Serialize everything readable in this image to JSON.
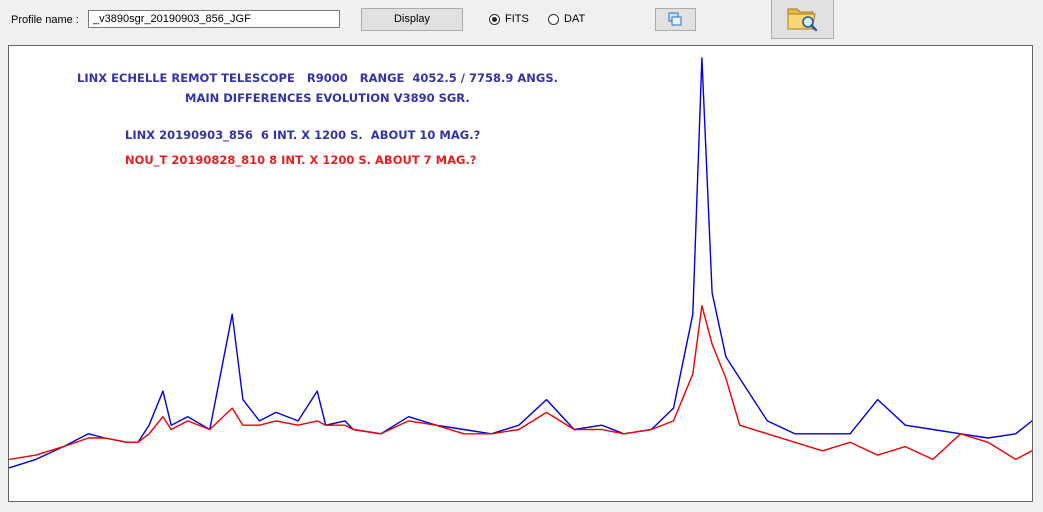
{
  "toolbar": {
    "profile_label": "Profile name :",
    "profile_value": "_v3890sgr_20190903_856_JGF",
    "display_label": "Display",
    "format_options": [
      {
        "label": "FITS",
        "selected": true
      },
      {
        "label": "DAT",
        "selected": false
      }
    ],
    "copy_icon": "copy-window-icon",
    "open_icon": "folder-search-icon"
  },
  "plot": {
    "annotations": [
      {
        "text": "LINX ECHELLE REMOT TELESCOPE   R9000   RANGE  4052.5 / 7758.9 ANGS.",
        "color": "#3333aa"
      },
      {
        "text": "MAIN DIFFERENCES EVOLUTION V3890 SGR.",
        "color": "#3333aa"
      },
      {
        "text": "LINX 20190903_856  6 INT. X 1200 S.  ABOUT 10 MAG.?",
        "color": "#3333aa"
      },
      {
        "text": "NOU_T 20190828_810 8 INT. X 1200 S. ABOUT 7 MAG.?",
        "color": "#e82020"
      }
    ]
  },
  "chart_data": {
    "type": "line",
    "title": "",
    "xlabel": "",
    "ylabel": "",
    "xlim": [
      4052.5,
      7758.9
    ],
    "grid": false,
    "series": [
      {
        "name": "LINX 20190903_856",
        "color": "#0000dd",
        "x": [
          4052.5,
          4150,
          4250,
          4340,
          4400,
          4480,
          4520,
          4560,
          4610,
          4640,
          4700,
          4780,
          4861,
          4900,
          4960,
          5020,
          5100,
          5169,
          5200,
          5270,
          5300,
          5400,
          5500,
          5600,
          5700,
          5800,
          5900,
          6000,
          6100,
          6200,
          6280,
          6380,
          6460,
          6530,
          6563,
          6600,
          6650,
          6700,
          6800,
          6900,
          7000,
          7100,
          7200,
          7300,
          7400,
          7500,
          7600,
          7700,
          7758.9
        ],
        "y": [
          0.04,
          0.06,
          0.09,
          0.12,
          0.11,
          0.1,
          0.1,
          0.14,
          0.22,
          0.14,
          0.16,
          0.13,
          0.4,
          0.2,
          0.15,
          0.17,
          0.15,
          0.22,
          0.14,
          0.15,
          0.13,
          0.12,
          0.16,
          0.14,
          0.13,
          0.12,
          0.14,
          0.2,
          0.13,
          0.14,
          0.12,
          0.13,
          0.18,
          0.4,
          1.0,
          0.45,
          0.3,
          0.25,
          0.15,
          0.12,
          0.12,
          0.12,
          0.2,
          0.14,
          0.13,
          0.12,
          0.11,
          0.12,
          0.15
        ]
      },
      {
        "name": "NOU_T 20190828_810",
        "color": "#ee0000",
        "x": [
          4052.5,
          4150,
          4250,
          4340,
          4400,
          4480,
          4520,
          4560,
          4610,
          4640,
          4700,
          4780,
          4861,
          4900,
          4960,
          5020,
          5100,
          5169,
          5200,
          5270,
          5300,
          5400,
          5500,
          5600,
          5700,
          5800,
          5900,
          6000,
          6100,
          6200,
          6280,
          6380,
          6460,
          6530,
          6563,
          6600,
          6650,
          6700,
          6800,
          6900,
          7000,
          7100,
          7200,
          7300,
          7400,
          7500,
          7600,
          7700,
          7758.9
        ],
        "y": [
          0.06,
          0.07,
          0.09,
          0.11,
          0.11,
          0.1,
          0.1,
          0.12,
          0.16,
          0.13,
          0.15,
          0.13,
          0.18,
          0.14,
          0.14,
          0.15,
          0.14,
          0.15,
          0.14,
          0.14,
          0.13,
          0.12,
          0.15,
          0.14,
          0.12,
          0.12,
          0.13,
          0.17,
          0.13,
          0.13,
          0.12,
          0.13,
          0.15,
          0.26,
          0.42,
          0.33,
          0.25,
          0.14,
          0.12,
          0.1,
          0.08,
          0.1,
          0.07,
          0.09,
          0.06,
          0.12,
          0.1,
          0.06,
          0.08
        ]
      }
    ]
  }
}
